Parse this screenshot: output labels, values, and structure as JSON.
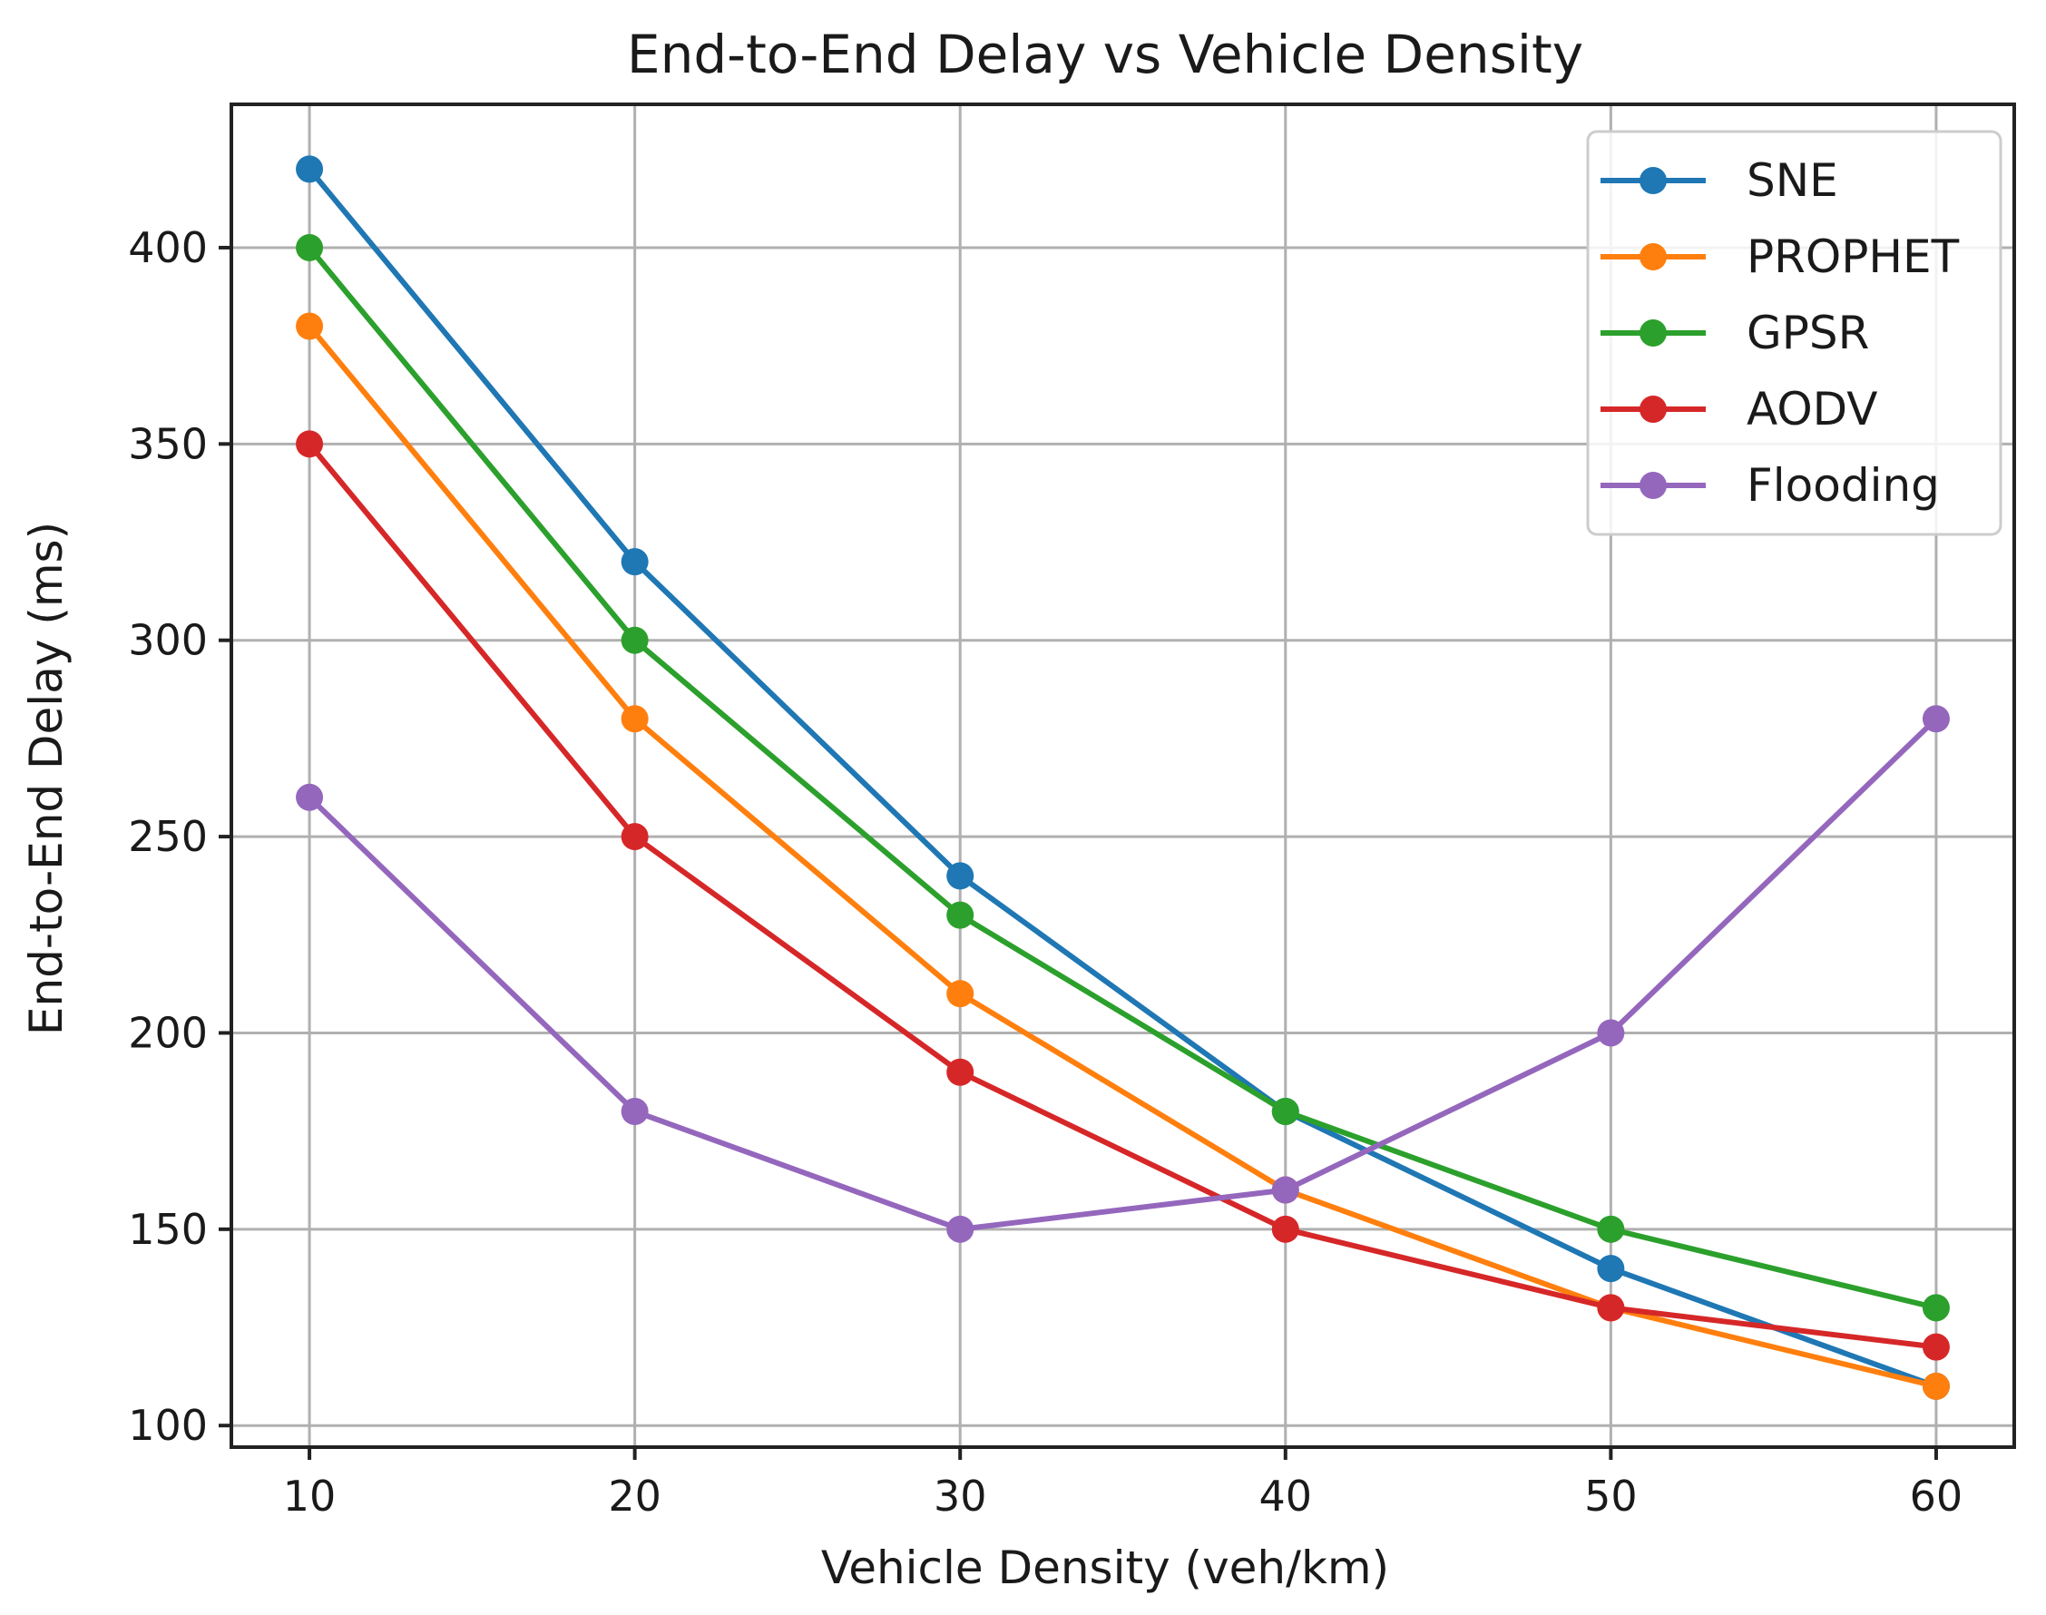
{
  "chart_data": {
    "type": "line",
    "title": "End-to-End Delay vs Vehicle Density",
    "xlabel": "Vehicle Density (veh/km)",
    "ylabel": "End-to-End Delay (ms)",
    "x": [
      10,
      20,
      30,
      40,
      50,
      60
    ],
    "x_ticks": [
      10,
      20,
      30,
      40,
      50,
      60
    ],
    "y_ticks": [
      100,
      150,
      200,
      250,
      300,
      350,
      400
    ],
    "xlim": [
      7.6,
      62.4
    ],
    "ylim": [
      94.5,
      436.5
    ],
    "grid": true,
    "legend_position": "top-right",
    "series": [
      {
        "name": "SNE",
        "color": "#1f77b4",
        "values": [
          420,
          320,
          240,
          180,
          140,
          110
        ]
      },
      {
        "name": "PROPHET",
        "color": "#ff7f0e",
        "values": [
          380,
          280,
          210,
          160,
          130,
          110
        ]
      },
      {
        "name": "GPSR",
        "color": "#2ca02c",
        "values": [
          400,
          300,
          230,
          180,
          150,
          130
        ]
      },
      {
        "name": "AODV",
        "color": "#d62728",
        "values": [
          350,
          250,
          190,
          150,
          130,
          120
        ]
      },
      {
        "name": "Flooding",
        "color": "#9467bd",
        "values": [
          260,
          180,
          150,
          160,
          200,
          280
        ]
      }
    ]
  }
}
